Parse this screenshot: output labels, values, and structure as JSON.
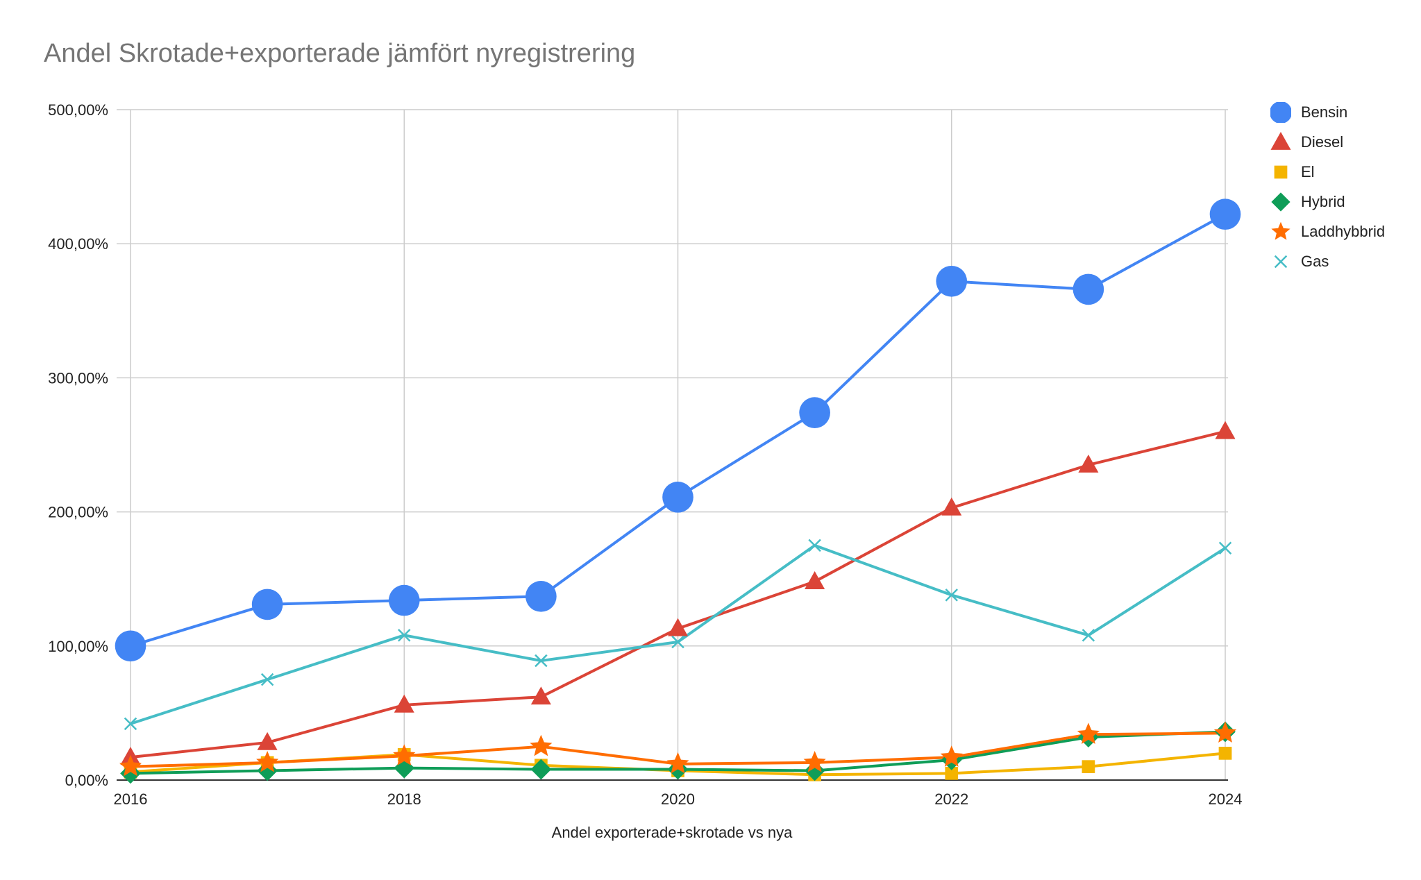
{
  "chart_data": {
    "type": "line",
    "title": "Andel Skrotade+exporterade jämfört nyregistrering",
    "xlabel": "Andel exporterade+skrotade vs nya",
    "ylabel": "",
    "x": [
      2016,
      2017,
      2018,
      2019,
      2020,
      2021,
      2022,
      2023,
      2024
    ],
    "xticks": [
      "2016",
      "2018",
      "2020",
      "2022",
      "2024"
    ],
    "yticks": [
      "0,00%",
      "100,00%",
      "200,00%",
      "300,00%",
      "400,00%",
      "500,00%"
    ],
    "ylim": [
      0,
      500
    ],
    "grid": true,
    "legend_position": "right",
    "series": [
      {
        "name": "Bensin",
        "color": "#4285f4",
        "marker": "circle",
        "values": [
          100,
          131,
          134,
          137,
          211,
          274,
          372,
          366,
          422
        ]
      },
      {
        "name": "Diesel",
        "color": "#db4437",
        "marker": "triangle",
        "values": [
          17,
          28,
          56,
          62,
          113,
          148,
          203,
          235,
          260
        ]
      },
      {
        "name": "El",
        "color": "#f4b400",
        "marker": "square",
        "values": [
          6,
          13,
          19,
          11,
          7,
          4,
          5,
          10,
          20
        ]
      },
      {
        "name": "Hybrid",
        "color": "#0f9d58",
        "marker": "diamond",
        "values": [
          5,
          7,
          9,
          8,
          8,
          7,
          15,
          32,
          36
        ]
      },
      {
        "name": "Laddhybbrid",
        "color": "#ff6d01",
        "marker": "star",
        "values": [
          10,
          13,
          18,
          25,
          12,
          13,
          17,
          34,
          35
        ]
      },
      {
        "name": "Gas",
        "color": "#46bdc6",
        "marker": "x",
        "values": [
          42,
          75,
          108,
          89,
          103,
          175,
          138,
          108,
          173
        ]
      }
    ]
  }
}
